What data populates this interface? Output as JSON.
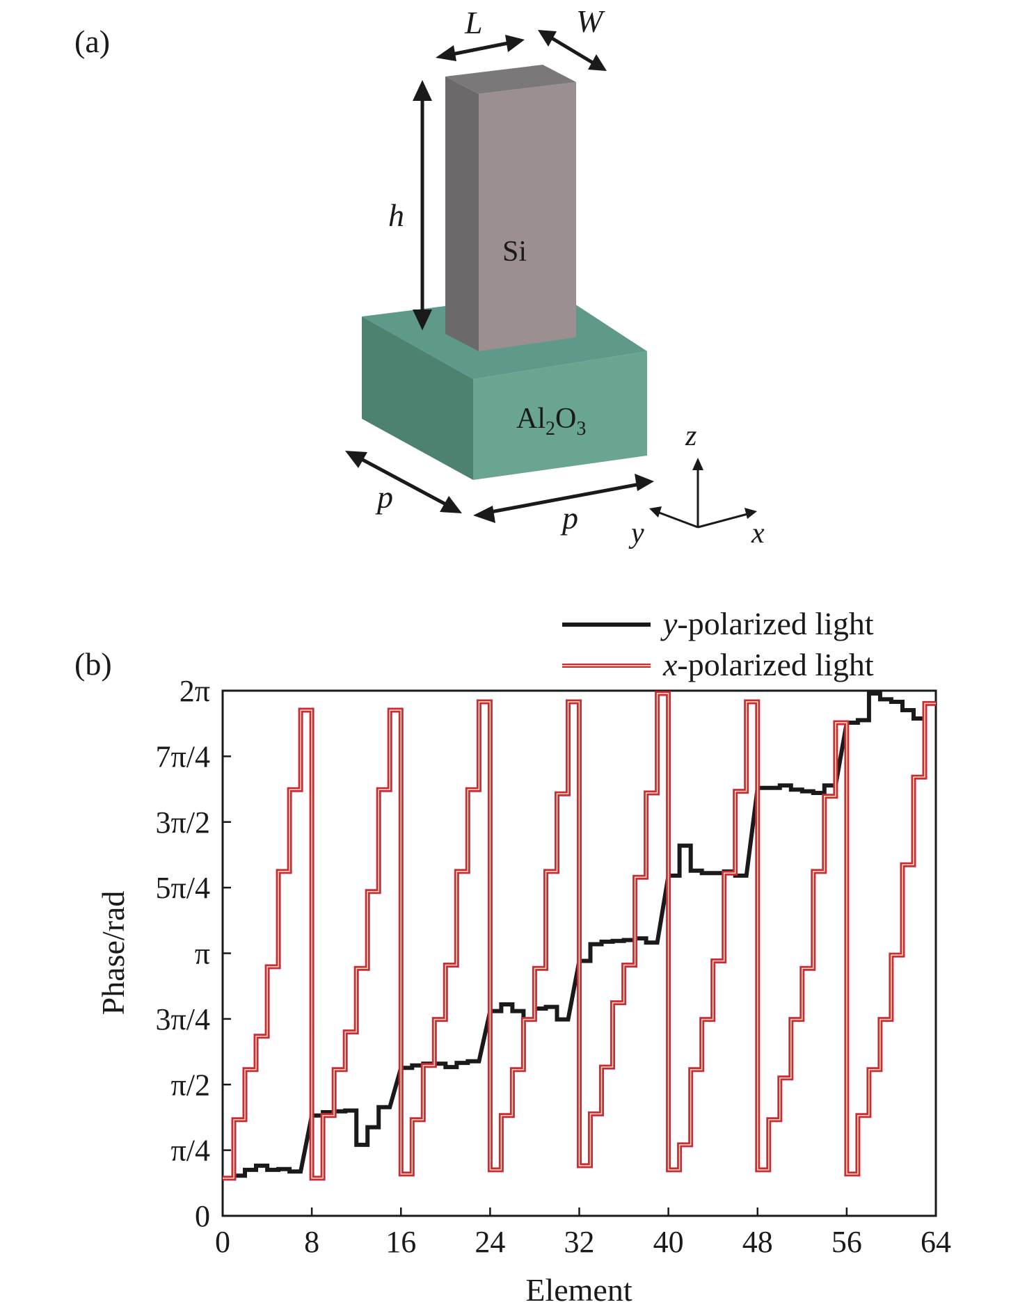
{
  "panel_a": {
    "label": "(a)",
    "dimensions": {
      "L": "L",
      "W": "W",
      "h": "h",
      "p1": "p",
      "p2": "p"
    },
    "pillar_material": "Si",
    "substrate_material": {
      "base": "Al",
      "sub1": "2",
      "mid": "O",
      "sub2": "3"
    },
    "axes": {
      "x": "x",
      "y": "y",
      "z": "z"
    },
    "colors": {
      "pillar_front": "#9b8b8e",
      "pillar_side": "#6d6b6c",
      "pillar_top": "#7d7b7c",
      "substrate_top": "#5f9a88",
      "substrate_front": "#6aa592",
      "substrate_side": "#4f8473"
    }
  },
  "panel_b": {
    "label": "(b)",
    "legend": [
      {
        "prefix": "y",
        "text": "-polarized light",
        "color": "#1a1a1a"
      },
      {
        "prefix": "x",
        "text": "-polarized light",
        "color": "#cc2a3c"
      }
    ]
  },
  "chart_data": {
    "type": "line",
    "xlabel": "Element",
    "ylabel": "Phase/rad",
    "xlim": [
      0,
      64
    ],
    "ylim": [
      0,
      6.2832
    ],
    "xticks": [
      0,
      8,
      16,
      24,
      32,
      40,
      48,
      56,
      64
    ],
    "xtick_labels": [
      "0",
      "8",
      "16",
      "24",
      "32",
      "40",
      "48",
      "56",
      "64"
    ],
    "yticks": [
      0,
      0.7854,
      1.5708,
      2.3562,
      3.1416,
      3.927,
      4.7124,
      5.4978,
      6.2832
    ],
    "ytick_labels": [
      "0",
      "π/4",
      "π/2",
      "3π/4",
      "π",
      "5π/4",
      "3π/2",
      "7π/4",
      "2π"
    ],
    "grid": false,
    "legend_position": "top-right",
    "series": [
      {
        "name": "y-polarized light",
        "color": "#1a1a1a",
        "steps": [
          {
            "start": 1,
            "values": [
              0.45,
              0.48,
              0.55,
              0.6,
              0.55,
              0.56,
              0.53
            ]
          },
          {
            "start": 9,
            "values": [
              1.2,
              1.24,
              1.25,
              1.26,
              0.85,
              1.06,
              1.3
            ]
          },
          {
            "start": 17,
            "values": [
              1.77,
              1.8,
              1.82,
              1.82,
              1.78,
              1.83,
              1.85
            ]
          },
          {
            "start": 25,
            "values": [
              2.45,
              2.53,
              2.45,
              2.35,
              2.48,
              2.5,
              2.35
            ]
          },
          {
            "start": 33,
            "values": [
              3.05,
              3.25,
              3.28,
              3.29,
              3.3,
              3.32,
              3.27
            ]
          },
          {
            "start": 41,
            "values": [
              4.07,
              4.43,
              4.13,
              4.1,
              4.1,
              4.12,
              4.07
            ]
          },
          {
            "start": 49,
            "values": [
              5.12,
              5.12,
              5.15,
              5.1,
              5.08,
              5.06,
              5.15
            ]
          },
          {
            "start": 57,
            "values": [
              5.9,
              5.93,
              6.25,
              6.18,
              6.15,
              6.05,
              5.95
            ]
          }
        ]
      },
      {
        "name": "x-polarized light",
        "color": "#cc2a3c",
        "steps": [
          {
            "start": 1,
            "values": [
              0.45,
              1.15,
              1.75,
              2.15,
              2.98,
              4.12,
              5.1,
              6.05
            ]
          },
          {
            "start": 9,
            "values": [
              0.45,
              1.2,
              1.75,
              2.2,
              2.96,
              3.88,
              5.1,
              6.05
            ]
          },
          {
            "start": 17,
            "values": [
              0.5,
              1.15,
              1.8,
              2.35,
              3.0,
              4.12,
              5.1,
              6.15
            ]
          },
          {
            "start": 25,
            "values": [
              0.55,
              1.2,
              1.75,
              2.35,
              2.96,
              4.12,
              5.05,
              6.15
            ]
          },
          {
            "start": 33,
            "values": [
              0.6,
              1.22,
              1.78,
              2.55,
              3.0,
              4.05,
              5.06,
              6.25
            ]
          },
          {
            "start": 41,
            "values": [
              0.55,
              0.85,
              1.75,
              2.35,
              3.05,
              4.1,
              5.08,
              6.15
            ]
          },
          {
            "start": 49,
            "values": [
              0.55,
              1.15,
              1.65,
              2.35,
              2.96,
              4.12,
              5.02,
              5.9
            ]
          },
          {
            "start": 57,
            "values": [
              0.5,
              1.2,
              1.75,
              2.35,
              3.12,
              4.2,
              5.25,
              6.13
            ]
          }
        ]
      }
    ]
  }
}
